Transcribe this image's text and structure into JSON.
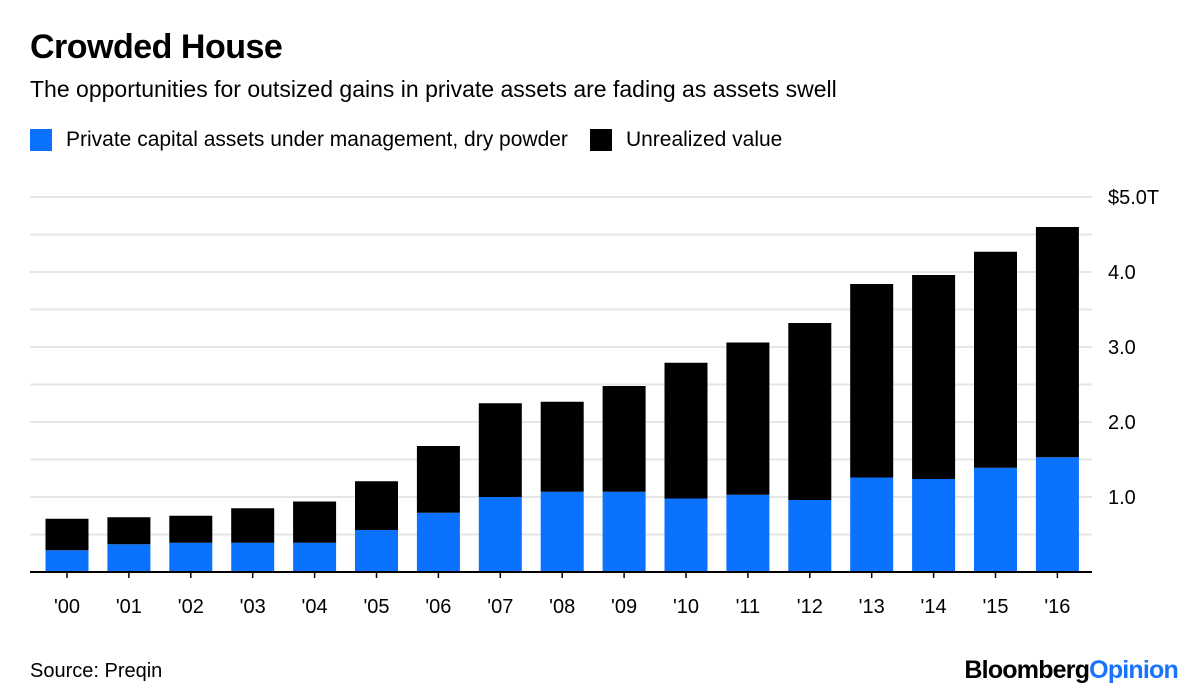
{
  "header": {
    "title": "Crowded House",
    "subtitle": "The opportunities for outsized gains in private assets are fading as assets swell"
  },
  "legend": [
    {
      "label": "Private capital assets under management, dry powder",
      "color": "#0a72fe"
    },
    {
      "label": "Unrealized value",
      "color": "#000000"
    }
  ],
  "footer": {
    "source": "Source: Preqin",
    "brand_part1": "Bloomberg",
    "brand_part2": "Opinion"
  },
  "chart_data": {
    "type": "bar",
    "stacked": true,
    "categories": [
      "'00",
      "'01",
      "'02",
      "'03",
      "'04",
      "'05",
      "'06",
      "'07",
      "'08",
      "'09",
      "'10",
      "'11",
      "'12",
      "'13",
      "'14",
      "'15",
      "'16"
    ],
    "series": [
      {
        "name": "Private capital assets under management, dry powder",
        "color": "#0a72fe",
        "values": [
          0.29,
          0.37,
          0.39,
          0.39,
          0.39,
          0.56,
          0.79,
          1.0,
          1.07,
          1.07,
          0.98,
          1.03,
          0.96,
          1.26,
          1.24,
          1.39,
          1.53
        ]
      },
      {
        "name": "Unrealized value",
        "color": "#000000",
        "values": [
          0.42,
          0.36,
          0.36,
          0.46,
          0.55,
          0.65,
          0.89,
          1.25,
          1.2,
          1.41,
          1.81,
          2.03,
          2.36,
          2.58,
          2.72,
          2.88,
          3.07
        ]
      }
    ],
    "ylim": [
      0,
      5.0
    ],
    "yticks": [
      {
        "value": 5.0,
        "label": "$5.0T"
      },
      {
        "value": 4.0,
        "label": "4.0"
      },
      {
        "value": 3.0,
        "label": "3.0"
      },
      {
        "value": 2.0,
        "label": "2.0"
      },
      {
        "value": 1.0,
        "label": "1.0"
      }
    ],
    "gridlines": [
      0.5,
      1.0,
      1.5,
      2.0,
      2.5,
      3.0,
      3.5,
      4.0,
      4.5,
      5.0
    ],
    "grid": true,
    "legend_position": "top-left",
    "y_axis_side": "right"
  }
}
